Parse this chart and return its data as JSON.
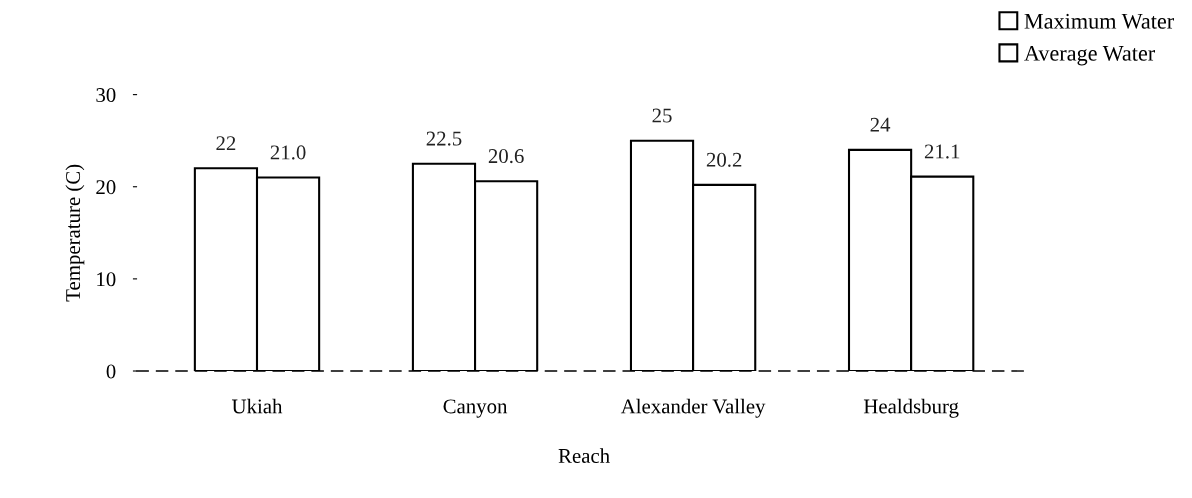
{
  "chart_data": {
    "type": "bar",
    "xlabel": "Reach",
    "ylabel": "Temperature (C)",
    "categories": [
      "Ukiah",
      "Canyon",
      "Alexander Valley",
      "Healdsburg"
    ],
    "series": [
      {
        "name": "Maximum Water",
        "color": "#ffffff",
        "values": [
          22,
          22.5,
          25,
          24
        ],
        "value_labels": [
          "22",
          "22.5",
          "25",
          "24"
        ]
      },
      {
        "name": "Average Water",
        "color": "#ffffff",
        "values": [
          21.0,
          20.6,
          20.2,
          21.1
        ],
        "value_labels": [
          "21.0",
          "20.6",
          "20.2",
          "21.1"
        ]
      }
    ],
    "ylim": [
      0,
      30
    ],
    "yticks": [
      0,
      10,
      20,
      30
    ],
    "grid": false,
    "legend": "top right"
  }
}
